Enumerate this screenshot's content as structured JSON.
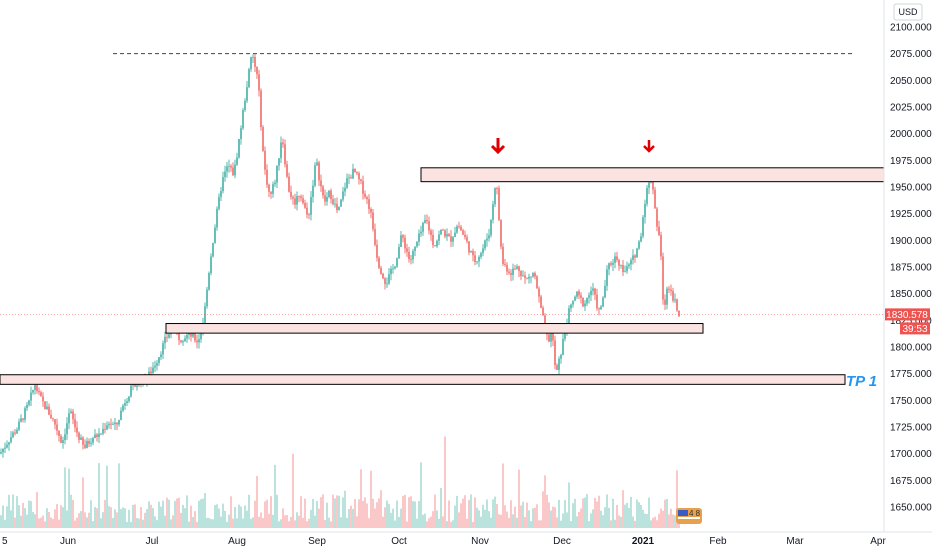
{
  "currency_label": "USD",
  "colors": {
    "up": "#26a69a",
    "down": "#ef5350",
    "zone_fill": "#fbe3e1",
    "zone_stroke": "#000000",
    "arrow": "#e00000",
    "tp_text": "#2196f3",
    "badge_bg": "#ef5350"
  },
  "chart_data": {
    "type": "candlestick",
    "y_ticks": [
      "2100.000",
      "2075.000",
      "2050.000",
      "2025.000",
      "2000.000",
      "1975.000",
      "1950.000",
      "1925.000",
      "1900.000",
      "1875.000",
      "1850.000",
      "1825.000",
      "1800.000",
      "1775.000",
      "1750.000",
      "1725.000",
      "1700.000",
      "1675.000",
      "1650.000"
    ],
    "x_ticks": [
      "Jun",
      "Jul",
      "Aug",
      "Sep",
      "Oct",
      "Nov",
      "Dec",
      "2021",
      "Feb",
      "Mar",
      "Apr"
    ],
    "x_tick_partial": "5",
    "ylim": [
      1640,
      2110
    ],
    "last_price": "1830.578",
    "countdown": "39:53",
    "annotation_text": "TP 1",
    "resistance_high_level": 2075,
    "zones": [
      {
        "name": "resistance-zone",
        "low": 1955,
        "high": 1968
      },
      {
        "name": "support-zone",
        "low": 1813,
        "high": 1822
      },
      {
        "name": "tp1-zone",
        "low": 1765,
        "high": 1774
      }
    ],
    "down_arrows": [
      "Nov",
      "Jan"
    ],
    "price_path": [
      [
        0,
        1700
      ],
      [
        8,
        1712
      ],
      [
        18,
        1725
      ],
      [
        28,
        1745
      ],
      [
        35,
        1765
      ],
      [
        40,
        1752
      ],
      [
        48,
        1740
      ],
      [
        55,
        1728
      ],
      [
        62,
        1710
      ],
      [
        70,
        1740
      ],
      [
        76,
        1722
      ],
      [
        84,
        1705
      ],
      [
        92,
        1715
      ],
      [
        100,
        1718
      ],
      [
        108,
        1730
      ],
      [
        116,
        1725
      ],
      [
        124,
        1748
      ],
      [
        132,
        1762
      ],
      [
        140,
        1768
      ],
      [
        148,
        1772
      ],
      [
        158,
        1790
      ],
      [
        166,
        1808
      ],
      [
        172,
        1818
      ],
      [
        180,
        1808
      ],
      [
        190,
        1812
      ],
      [
        198,
        1805
      ],
      [
        204,
        1828
      ],
      [
        210,
        1880
      ],
      [
        216,
        1920
      ],
      [
        222,
        1955
      ],
      [
        228,
        1970
      ],
      [
        234,
        1962
      ],
      [
        240,
        2000
      ],
      [
        246,
        2040
      ],
      [
        252,
        2075
      ],
      [
        258,
        2050
      ],
      [
        264,
        1970
      ],
      [
        270,
        1940
      ],
      [
        276,
        1960
      ],
      [
        282,
        2000
      ],
      [
        288,
        1950
      ],
      [
        294,
        1935
      ],
      [
        300,
        1945
      ],
      [
        308,
        1920
      ],
      [
        316,
        1975
      ],
      [
        324,
        1935
      ],
      [
        330,
        1945
      ],
      [
        338,
        1925
      ],
      [
        346,
        1955
      ],
      [
        354,
        1965
      ],
      [
        362,
        1950
      ],
      [
        370,
        1930
      ],
      [
        378,
        1880
      ],
      [
        386,
        1860
      ],
      [
        394,
        1875
      ],
      [
        402,
        1905
      ],
      [
        410,
        1880
      ],
      [
        418,
        1900
      ],
      [
        426,
        1920
      ],
      [
        434,
        1895
      ],
      [
        442,
        1910
      ],
      [
        450,
        1900
      ],
      [
        458,
        1915
      ],
      [
        466,
        1900
      ],
      [
        474,
        1880
      ],
      [
        482,
        1890
      ],
      [
        490,
        1910
      ],
      [
        496,
        1960
      ],
      [
        502,
        1880
      ],
      [
        510,
        1870
      ],
      [
        518,
        1875
      ],
      [
        526,
        1862
      ],
      [
        534,
        1870
      ],
      [
        542,
        1830
      ],
      [
        548,
        1805
      ],
      [
        552,
        1815
      ],
      [
        556,
        1772
      ],
      [
        562,
        1800
      ],
      [
        568,
        1830
      ],
      [
        576,
        1850
      ],
      [
        584,
        1840
      ],
      [
        592,
        1855
      ],
      [
        600,
        1830
      ],
      [
        608,
        1875
      ],
      [
        616,
        1885
      ],
      [
        624,
        1870
      ],
      [
        632,
        1880
      ],
      [
        640,
        1900
      ],
      [
        646,
        1945
      ],
      [
        652,
        1960
      ],
      [
        656,
        1920
      ],
      [
        660,
        1900
      ],
      [
        664,
        1830
      ],
      [
        668,
        1860
      ],
      [
        672,
        1850
      ],
      [
        676,
        1840
      ],
      [
        680,
        1830
      ]
    ]
  }
}
